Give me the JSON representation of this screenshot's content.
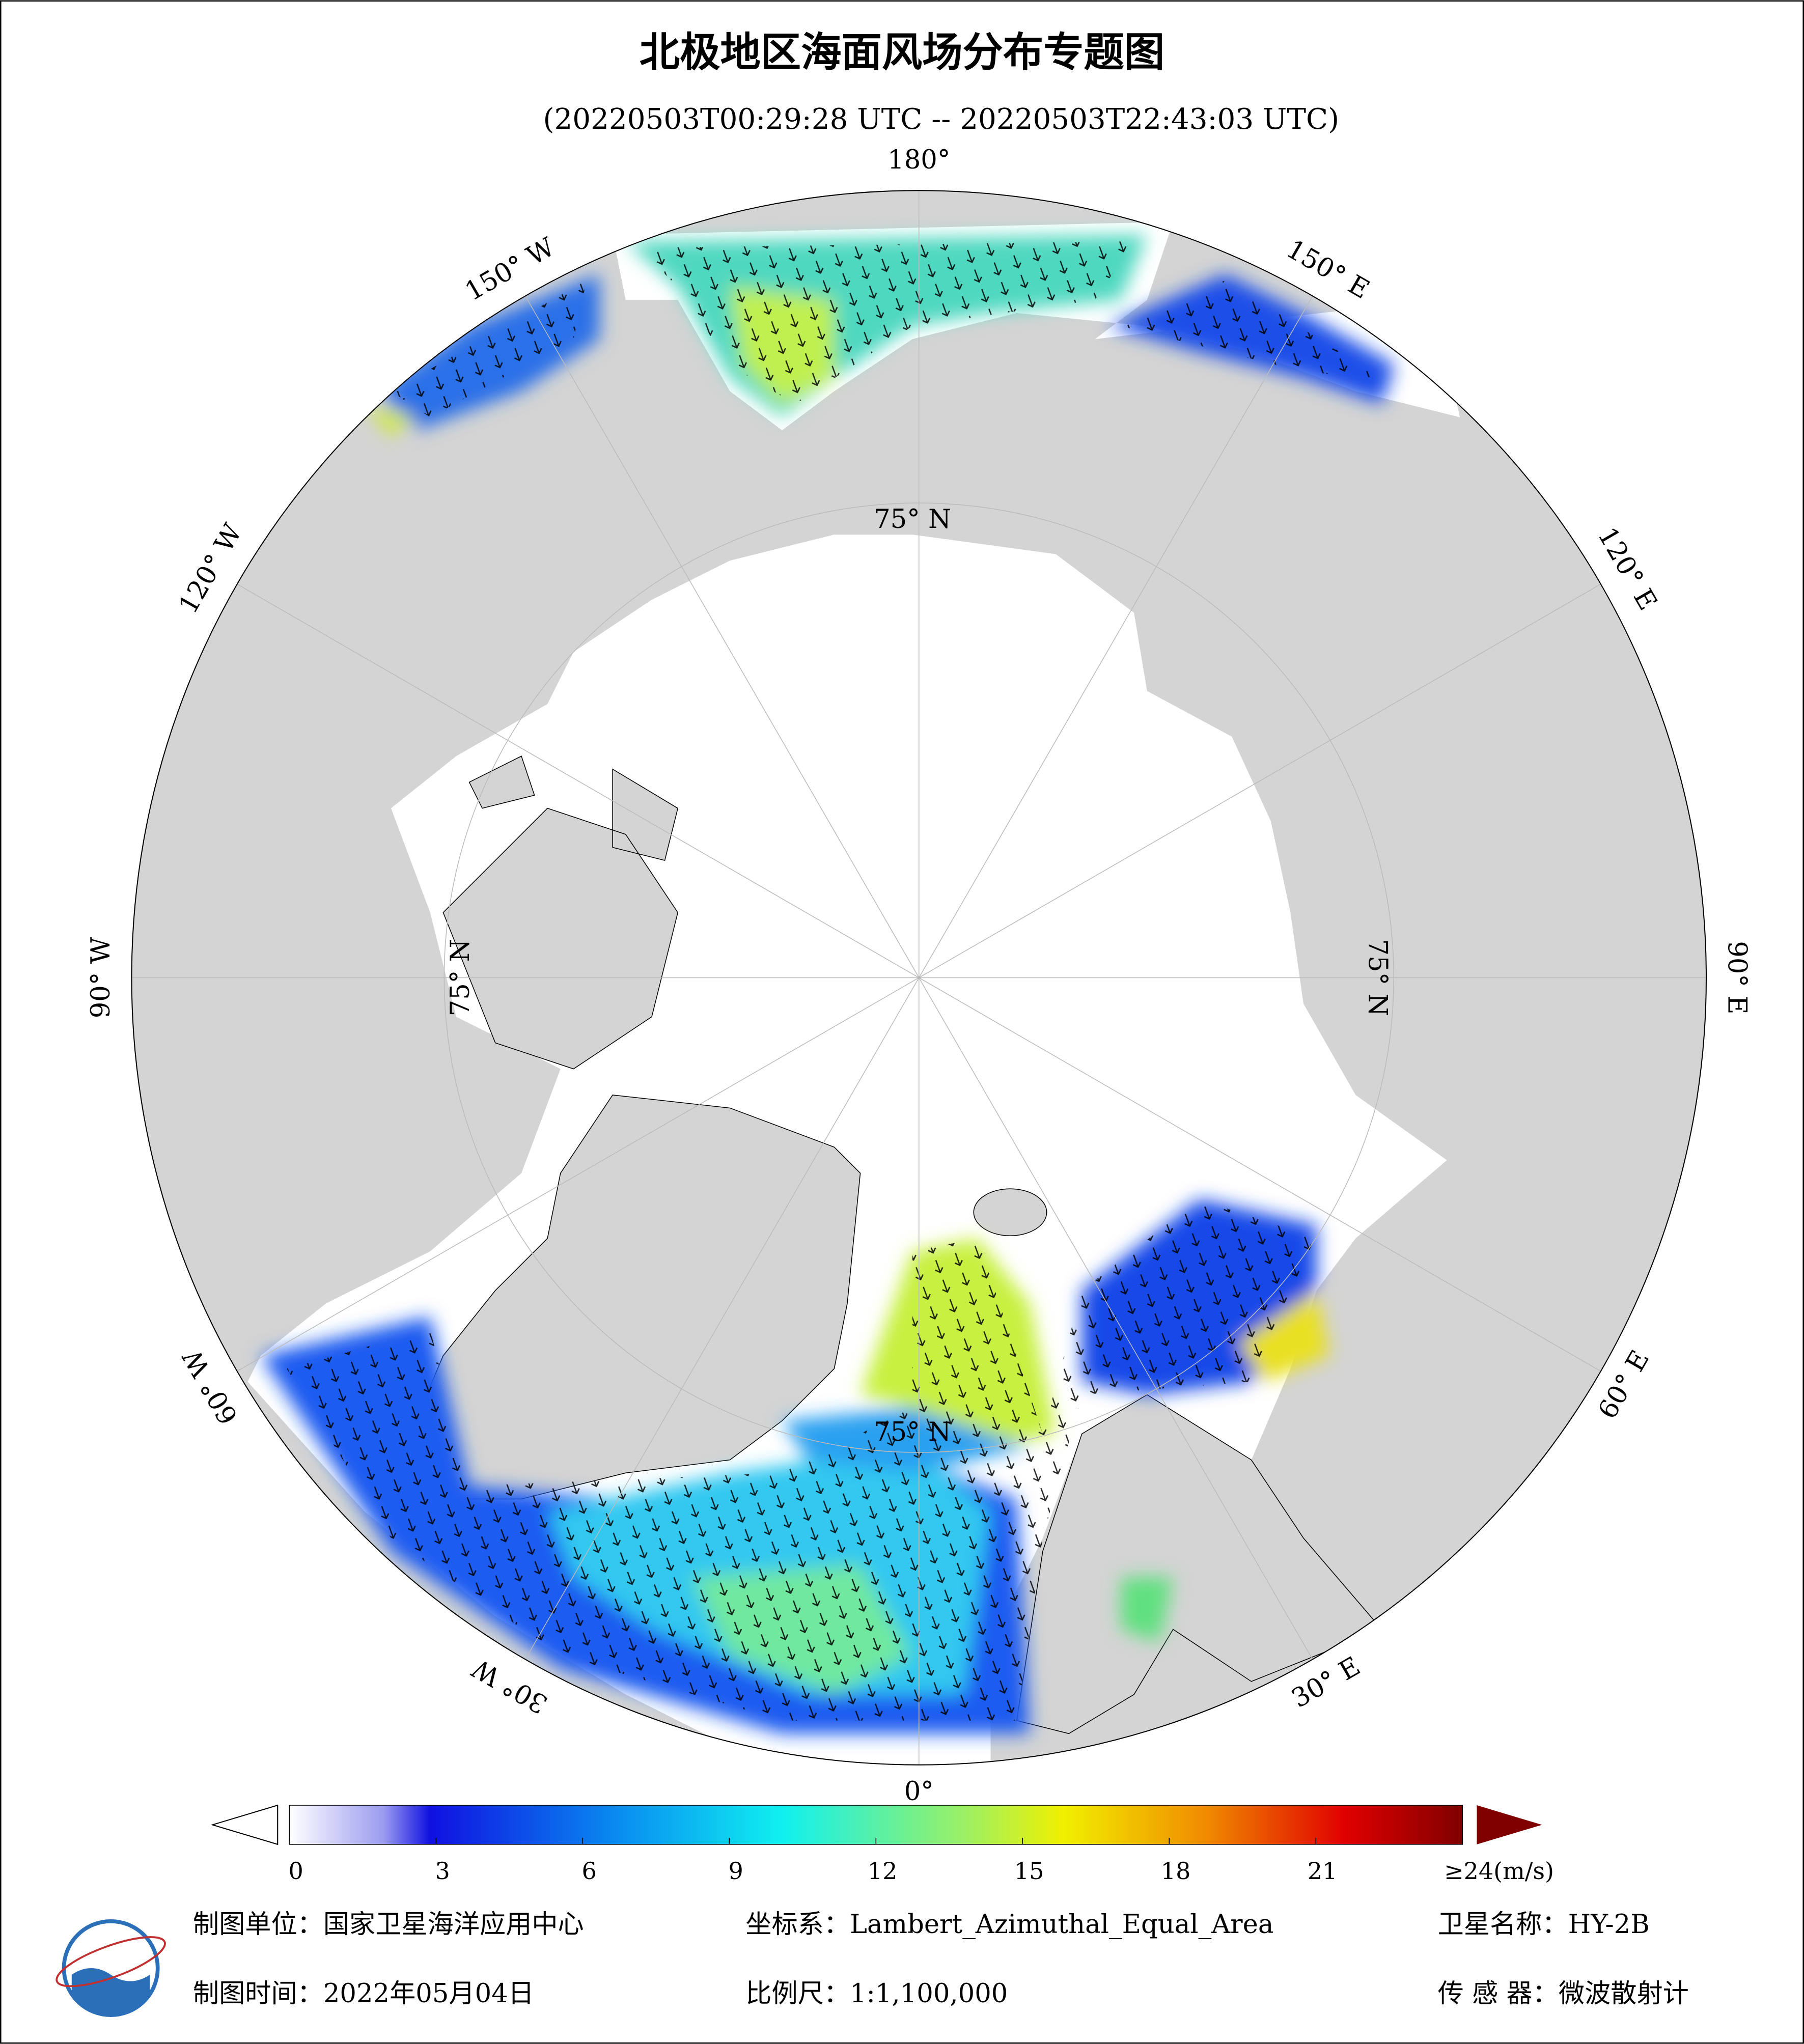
{
  "header": {
    "title": "北极地区海面风场分布专题图",
    "subtitle": "(20220503T00:29:28 UTC -- 20220503T22:43:03 UTC)"
  },
  "map": {
    "meridians": [
      {
        "value": 180,
        "label": "180°"
      },
      {
        "value": 150,
        "label": "150° E"
      },
      {
        "value": 120,
        "label": "120° E"
      },
      {
        "value": 90,
        "label": "90° E"
      },
      {
        "value": 60,
        "label": "60° E"
      },
      {
        "value": 30,
        "label": "30° E"
      },
      {
        "value": 0,
        "label": "0°"
      },
      {
        "value": -30,
        "label": "30° W"
      },
      {
        "value": -60,
        "label": "60° W"
      },
      {
        "value": -90,
        "label": "90° W"
      },
      {
        "value": -120,
        "label": "120° W"
      },
      {
        "value": -150,
        "label": "150° W"
      }
    ],
    "parallels": [
      {
        "value": 75,
        "label": "75° N"
      }
    ]
  },
  "colorbar": {
    "range": [
      0,
      24
    ],
    "ticks": [
      0,
      3,
      6,
      9,
      12,
      15,
      18,
      21,
      {
        "value": 24,
        "label": "≥24(m/s)"
      }
    ]
  },
  "footer": {
    "producer": "制图单位：国家卫星海洋应用中心",
    "projection": "坐标系：Lambert_Azimuthal_Equal_Area",
    "satellite": "卫星名称：HY-2B",
    "date": "制图时间：2022年05月04日",
    "scale": "比例尺：1:1,100,000",
    "sensor": "传 感 器：微波散射计"
  }
}
